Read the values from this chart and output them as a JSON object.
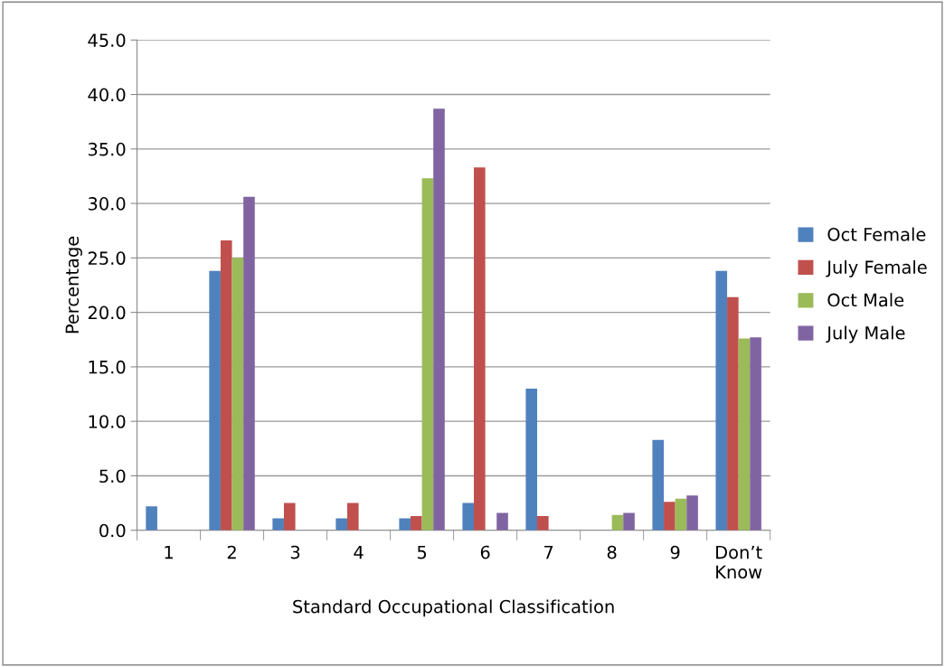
{
  "chart_data": {
    "type": "bar",
    "xlabel": "Standard Occupational Classification",
    "ylabel": "Percentage",
    "categories": [
      "1",
      "2",
      "3",
      "4",
      "5",
      "6",
      "7",
      "8",
      "9",
      "Don’t\nKnow"
    ],
    "series": [
      {
        "name": "Oct Female",
        "color": "#4f81bd",
        "values": [
          2.2,
          23.8,
          1.1,
          1.1,
          1.1,
          2.5,
          13.0,
          null,
          8.3,
          23.8
        ]
      },
      {
        "name": "July Female",
        "color": "#c0504d",
        "values": [
          null,
          26.6,
          2.5,
          2.5,
          1.3,
          33.3,
          1.3,
          null,
          2.6,
          21.4
        ]
      },
      {
        "name": "Oct Male",
        "color": "#9bbb59",
        "values": [
          null,
          25.0,
          null,
          null,
          32.3,
          null,
          null,
          1.4,
          2.9,
          17.6
        ]
      },
      {
        "name": "July Male",
        "color": "#8064a2",
        "values": [
          null,
          30.6,
          null,
          null,
          38.7,
          1.6,
          null,
          1.6,
          3.2,
          17.7
        ]
      }
    ],
    "ylim": [
      0,
      45
    ],
    "yticks": [
      {
        "value": 0,
        "label": "0.0"
      },
      {
        "value": 5,
        "label": "5.0"
      },
      {
        "value": 10,
        "label": "10.0"
      },
      {
        "value": 15,
        "label": "15.0"
      },
      {
        "value": 20,
        "label": "20.0"
      },
      {
        "value": 25,
        "label": "25.0"
      },
      {
        "value": 30,
        "label": "30.0"
      },
      {
        "value": 35,
        "label": "35.0"
      },
      {
        "value": 40,
        "label": "40.0"
      },
      {
        "value": 45,
        "label": "45.0"
      }
    ],
    "grid": "y",
    "legend": "right"
  }
}
